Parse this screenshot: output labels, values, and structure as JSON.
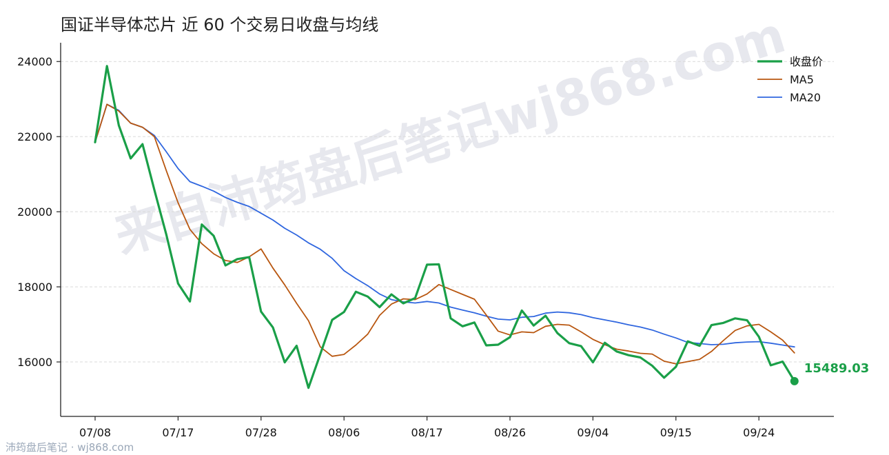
{
  "colors": {
    "close": "#1a9f48",
    "ma5": "#b8560f",
    "ma20": "#2f66df",
    "grid": "#d9d9d9",
    "watermark": "#e7e8ee",
    "footer": "#9aa7b8"
  },
  "watermark_text": "来自沛筠盘后笔记wj868.com",
  "footer": "沛筠盘后笔记 · wj868.com",
  "chart_data": {
    "type": "line",
    "title": "国证半导体芯片 近 60 个交易日收盘与均线",
    "xlabel": "",
    "ylabel": "",
    "ylim": [
      14550,
      24500
    ],
    "yticks": [
      16000,
      18000,
      20000,
      22000,
      24000
    ],
    "grid": "horizontal-dashed",
    "legend_position": "top-right",
    "x_tick_labels": [
      "07/08",
      "07/17",
      "07/28",
      "08/06",
      "08/17",
      "08/26",
      "09/04",
      "09/15",
      "09/24"
    ],
    "x_tick_index": [
      0,
      7,
      14,
      21,
      28,
      35,
      42,
      49,
      56
    ],
    "last_value_label": "15489.03",
    "series": [
      {
        "name": "收盘价",
        "style": "close",
        "values": [
          21850,
          23880,
          22300,
          21420,
          21800,
          20580,
          19400,
          18090,
          17610,
          19660,
          19360,
          18570,
          18740,
          18790,
          17340,
          16920,
          15990,
          16430,
          15310,
          16210,
          17120,
          17330,
          17870,
          17740,
          17460,
          17800,
          17560,
          17700,
          18590,
          18600,
          17160,
          16950,
          17050,
          16440,
          16460,
          16660,
          17370,
          16970,
          17230,
          16770,
          16500,
          16420,
          15990,
          16510,
          16280,
          16180,
          16120,
          15900,
          15580,
          15870,
          16550,
          16430,
          16980,
          17040,
          17160,
          17110,
          16670,
          15910,
          16010,
          15489.03
        ]
      },
      {
        "name": "MA5",
        "style": "ma5",
        "values": [
          21850,
          22860,
          22680,
          22360,
          22250,
          22000,
          21100,
          20240,
          19530,
          19150,
          18880,
          18700,
          18650,
          18800,
          19010,
          18500,
          18050,
          17560,
          17100,
          16400,
          16150,
          16200,
          16450,
          16740,
          17240,
          17540,
          17680,
          17660,
          17810,
          18060,
          17930,
          17800,
          17670,
          17250,
          16820,
          16720,
          16800,
          16780,
          16950,
          17000,
          16980,
          16800,
          16600,
          16460,
          16340,
          16290,
          16230,
          16210,
          16020,
          15950,
          16010,
          16070,
          16280,
          16570,
          16840,
          16960,
          17000,
          16800,
          16580,
          16240
        ]
      },
      {
        "name": "MA20",
        "style": "ma20",
        "values": [
          21850,
          22860,
          22700,
          22360,
          22250,
          22030,
          21600,
          21150,
          20800,
          20680,
          20550,
          20380,
          20250,
          20140,
          19960,
          19780,
          19560,
          19380,
          19170,
          19000,
          18760,
          18430,
          18220,
          18030,
          17810,
          17660,
          17600,
          17570,
          17610,
          17570,
          17460,
          17380,
          17310,
          17220,
          17140,
          17120,
          17190,
          17210,
          17300,
          17330,
          17310,
          17260,
          17180,
          17120,
          17060,
          16990,
          16930,
          16850,
          16740,
          16640,
          16520,
          16490,
          16460,
          16470,
          16510,
          16530,
          16540,
          16500,
          16450,
          16400
        ]
      }
    ]
  }
}
